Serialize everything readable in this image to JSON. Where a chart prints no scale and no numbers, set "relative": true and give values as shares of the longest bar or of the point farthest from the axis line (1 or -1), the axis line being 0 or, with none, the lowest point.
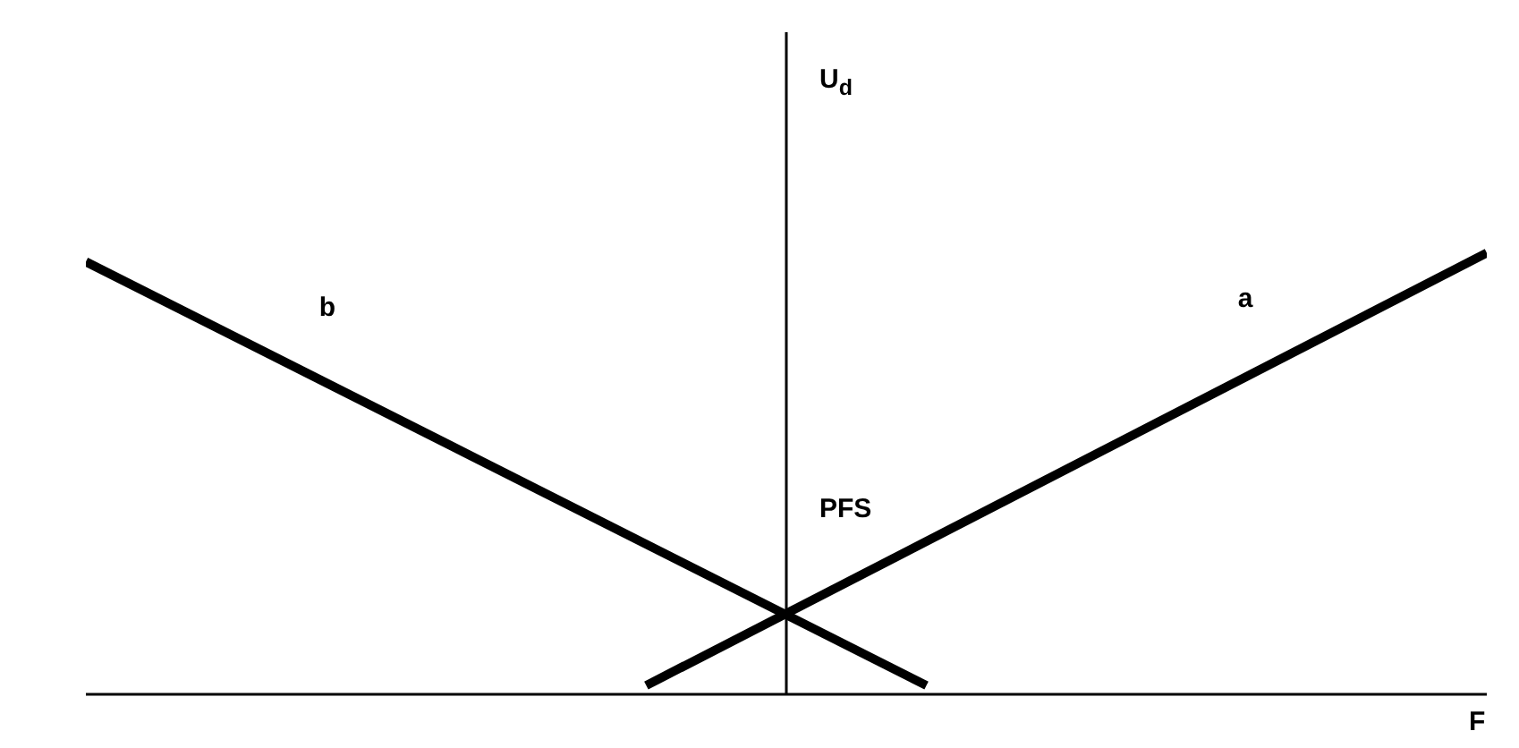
{
  "chart_data": {
    "type": "line",
    "relative": true,
    "xlabel": "F",
    "annotations": [
      "U$_{d}$",
      "PFS"
    ],
    "categories": [
      null,
      null,
      null,
      null,
      null,
      null,
      null,
      null,
      null,
      null,
      null
    ],
    "series": [
      {
        "name": "a",
        "color": "#000000",
        "values": [
          null,
          null,
          null,
          null,
          0.02,
          null,
          null,
          null,
          null,
          null,
          1
        ]
      },
      {
        "name": "b",
        "color": "#000000",
        "values": [
          0.98,
          null,
          null,
          null,
          null,
          null,
          0.02,
          null,
          null,
          null,
          null
        ]
      }
    ]
  }
}
